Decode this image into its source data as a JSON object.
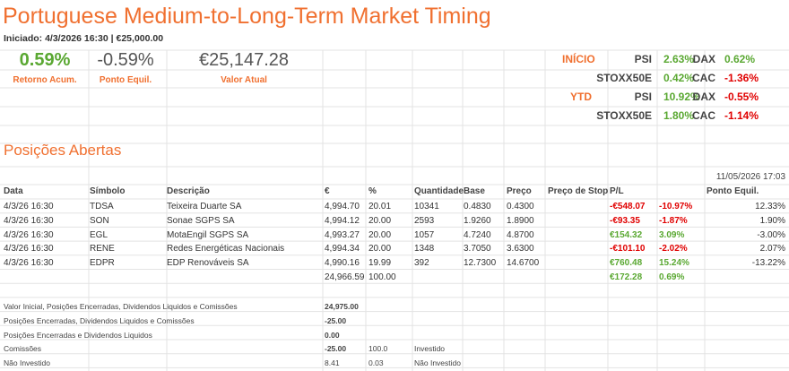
{
  "header": {
    "title": "Portuguese Medium-to-Long-Term Market Timing",
    "started": "Iniciado: 4/3/2026 16:30 | €25,000.00"
  },
  "summary": [
    {
      "value": "0.59%",
      "label": "Retorno Acum."
    },
    {
      "value": "-0.59%",
      "label": "Ponto Equil."
    },
    {
      "value": "€25,147.28",
      "label": "Valor Atual"
    }
  ],
  "indices": {
    "inicio_label": "INÍCIO",
    "ytd_label": "YTD",
    "inicio": [
      [
        "PSI",
        "2.63%",
        "DAX",
        "0.62%"
      ],
      [
        "STOXX50E",
        "0.42%",
        "CAC",
        "-1.36%"
      ]
    ],
    "ytd": [
      [
        "PSI",
        "10.92%",
        "DAX",
        "-0.55%"
      ],
      [
        "STOXX50E",
        "1.80%",
        "CAC",
        "-1.14%"
      ]
    ]
  },
  "positions": {
    "title": "Posições Abertas",
    "timestamp": "11/05/2026 17:03",
    "headers": [
      "Data",
      "Símbolo",
      "Descrição",
      "€",
      "%",
      "Quantidade",
      "Base",
      "Preço",
      "Preço de Stop",
      "P/L",
      "Ponto Equil."
    ],
    "rows": [
      [
        "4/3/26 16:30",
        "TDSA",
        "Teixeira Duarte SA",
        "4,994.70",
        "20.01",
        "10341",
        "0.4830",
        "0.4300",
        "-€548.07",
        "-10.97%",
        "12.33%"
      ],
      [
        "4/3/26 16:30",
        "SON",
        "Sonae SGPS SA",
        "4,994.12",
        "20.00",
        "2593",
        "1.9260",
        "1.8900",
        "-€93.35",
        "-1.87%",
        "1.90%"
      ],
      [
        "4/3/26 16:30",
        "EGL",
        "MotaEngil SGPS SA",
        "4,993.27",
        "20.00",
        "1057",
        "4.7240",
        "4.8700",
        "€154.32",
        "3.09%",
        "-3.00%"
      ],
      [
        "4/3/26 16:30",
        "RENE",
        "Redes Energéticas Nacionais",
        "4,994.34",
        "20.00",
        "1348",
        "3.7050",
        "3.6300",
        "-€101.10",
        "-2.02%",
        "2.07%"
      ],
      [
        "4/3/26 16:30",
        "EDPR",
        "EDP Renováveis SA",
        "4,990.16",
        "19.99",
        "392",
        "12.7300",
        "14.6700",
        "€760.48",
        "15.24%",
        "-13.22%"
      ]
    ],
    "totals": [
      "24,966.59",
      "100.00",
      "€172.28",
      "0.69%"
    ]
  },
  "summary_table": {
    "rows": [
      [
        "Valor Inicial, Posições Encerradas, Dividendos Liquidos e Comissões",
        "24,975.00"
      ],
      [
        "Posições Encerradas, Dividendos Liquidos e Comissões",
        "-25.00"
      ],
      [
        "Posições Encerradas e Dividendos Liquidos",
        "0.00"
      ],
      [
        "Comissões",
        "-25.00",
        "100.0",
        "Investido"
      ],
      [
        "Não Investido",
        "8.41",
        "0.03",
        "Não Investido"
      ]
    ]
  }
}
